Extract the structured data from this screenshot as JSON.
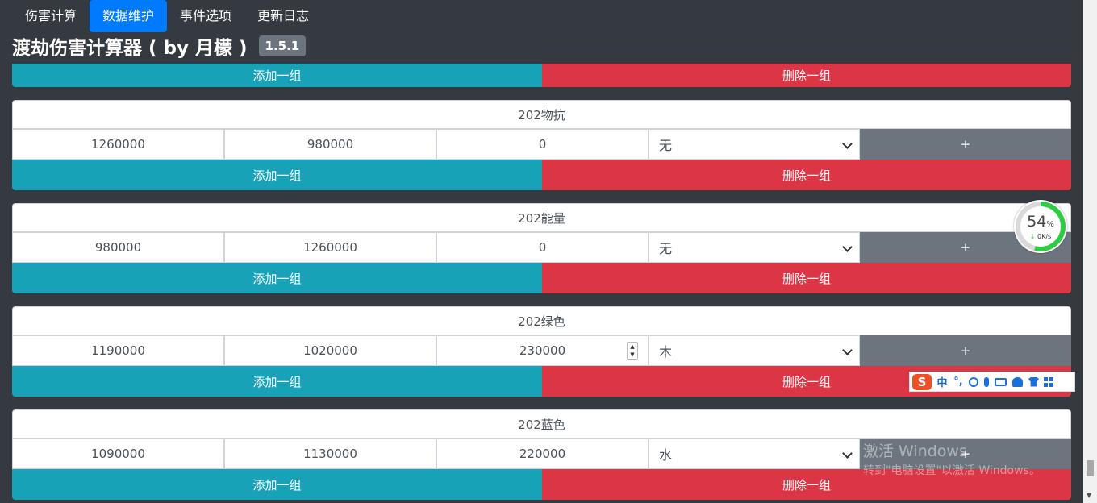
{
  "nav": {
    "tabs": [
      {
        "label": "伤害计算",
        "active": false
      },
      {
        "label": "数据维护",
        "active": true
      },
      {
        "label": "事件选项",
        "active": false
      },
      {
        "label": "更新日志",
        "active": false
      }
    ]
  },
  "header": {
    "title": "渡劫伤害计算器 ( by 月檬 )",
    "version": "1.5.1"
  },
  "buttons": {
    "add_group": "添加一组",
    "delete_group": "删除一组",
    "plus": "+"
  },
  "groups": [
    {
      "name": "202物抗",
      "values": [
        "1260000",
        "980000",
        "0"
      ],
      "element": "无"
    },
    {
      "name": "202能量",
      "values": [
        "980000",
        "1260000",
        "0"
      ],
      "element": "无"
    },
    {
      "name": "202绿色",
      "values": [
        "1190000",
        "1020000",
        "230000"
      ],
      "element": "木"
    },
    {
      "name": "202蓝色",
      "values": [
        "1090000",
        "1130000",
        "220000"
      ],
      "element": "水"
    }
  ],
  "speed_widget": {
    "percent": "54",
    "percent_unit": "%",
    "rate": "0K/s",
    "ring_color": "#2ecc40"
  },
  "ime_bar": {
    "logo": "S",
    "mode": "中",
    "punct": "°,",
    "icons": [
      "smile-icon",
      "microphone-icon",
      "keyboard-icon",
      "user-icon",
      "shirt-icon",
      "grid-icon"
    ]
  },
  "watermark": {
    "line1": "激活 Windows",
    "line2": "转到\"电脑设置\"以激活 Windows。"
  },
  "colors": {
    "background": "#343a40",
    "primary": "#007bff",
    "info": "#17a2b8",
    "danger": "#dc3545",
    "secondary": "#6c757d"
  }
}
